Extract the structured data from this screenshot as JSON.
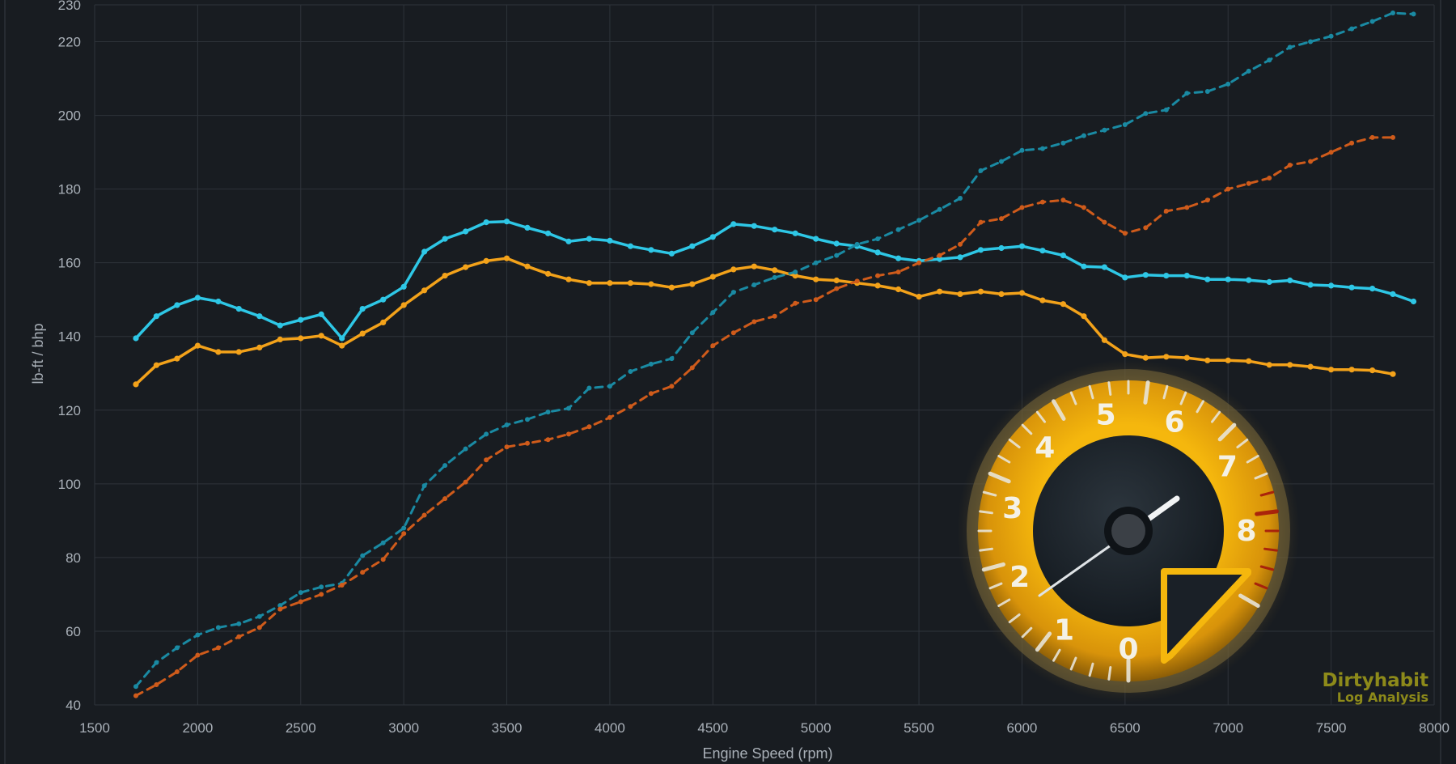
{
  "chart_data": {
    "type": "line",
    "title": "",
    "xlabel": "Engine Speed (rpm)",
    "ylabel": "lb-ft / bhp",
    "xlim": [
      1500,
      8000
    ],
    "ylim": [
      40,
      230
    ],
    "x_ticks": [
      1500,
      2000,
      2500,
      3000,
      3500,
      4000,
      4500,
      5000,
      5500,
      6000,
      6500,
      7000,
      7500,
      8000
    ],
    "y_ticks": [
      40,
      60,
      80,
      100,
      120,
      140,
      160,
      180,
      200,
      220,
      230
    ],
    "grid": true,
    "legend": "none",
    "series": [
      {
        "color": "#2ec7e6",
        "dash": "solid",
        "points": [
          [
            1700,
            139.5
          ],
          [
            1800,
            145.5
          ],
          [
            1900,
            148.5
          ],
          [
            2000,
            150.5
          ],
          [
            2100,
            149.5
          ],
          [
            2200,
            147.5
          ],
          [
            2300,
            145.5
          ],
          [
            2400,
            143
          ],
          [
            2500,
            144.5
          ],
          [
            2600,
            146
          ],
          [
            2700,
            139.5
          ],
          [
            2800,
            147.5
          ],
          [
            2900,
            150
          ],
          [
            3000,
            153.5
          ],
          [
            3100,
            163
          ],
          [
            3200,
            166.5
          ],
          [
            3300,
            168.5
          ],
          [
            3400,
            171
          ],
          [
            3500,
            171.2
          ],
          [
            3600,
            169.5
          ],
          [
            3700,
            168
          ],
          [
            3800,
            165.8
          ],
          [
            3900,
            166.5
          ],
          [
            4000,
            166
          ],
          [
            4100,
            164.5
          ],
          [
            4200,
            163.5
          ],
          [
            4300,
            162.5
          ],
          [
            4400,
            164.5
          ],
          [
            4500,
            167
          ],
          [
            4600,
            170.5
          ],
          [
            4700,
            170
          ],
          [
            4800,
            169
          ],
          [
            4900,
            168
          ],
          [
            5000,
            166.5
          ],
          [
            5100,
            165.2
          ],
          [
            5200,
            164.5
          ],
          [
            5300,
            162.8
          ],
          [
            5400,
            161.2
          ],
          [
            5500,
            160.5
          ],
          [
            5600,
            161
          ],
          [
            5700,
            161.5
          ],
          [
            5800,
            163.5
          ],
          [
            5900,
            164
          ],
          [
            6000,
            164.5
          ],
          [
            6100,
            163.3
          ],
          [
            6200,
            162
          ],
          [
            6300,
            159
          ],
          [
            6400,
            158.8
          ],
          [
            6500,
            156
          ],
          [
            6600,
            156.7
          ],
          [
            6700,
            156.5
          ],
          [
            6800,
            156.5
          ],
          [
            6900,
            155.5
          ],
          [
            7000,
            155.5
          ],
          [
            7100,
            155.3
          ],
          [
            7200,
            154.8
          ],
          [
            7300,
            155.2
          ],
          [
            7400,
            154
          ],
          [
            7500,
            153.8
          ],
          [
            7600,
            153.3
          ],
          [
            7700,
            153
          ],
          [
            7800,
            151.5
          ],
          [
            7900,
            149.5
          ]
        ]
      },
      {
        "color": "#f3a21a",
        "dash": "solid",
        "points": [
          [
            1700,
            127
          ],
          [
            1800,
            132.2
          ],
          [
            1900,
            134
          ],
          [
            2000,
            137.5
          ],
          [
            2100,
            135.8
          ],
          [
            2200,
            135.8
          ],
          [
            2300,
            137
          ],
          [
            2400,
            139.2
          ],
          [
            2500,
            139.5
          ],
          [
            2600,
            140.2
          ],
          [
            2700,
            137.5
          ],
          [
            2800,
            140.8
          ],
          [
            2900,
            143.8
          ],
          [
            3000,
            148.5
          ],
          [
            3100,
            152.5
          ],
          [
            3200,
            156.5
          ],
          [
            3300,
            158.8
          ],
          [
            3400,
            160.5
          ],
          [
            3500,
            161.2
          ],
          [
            3600,
            159
          ],
          [
            3700,
            157
          ],
          [
            3800,
            155.5
          ],
          [
            3900,
            154.5
          ],
          [
            4000,
            154.5
          ],
          [
            4100,
            154.5
          ],
          [
            4200,
            154.2
          ],
          [
            4300,
            153.3
          ],
          [
            4400,
            154.2
          ],
          [
            4500,
            156.2
          ],
          [
            4600,
            158.2
          ],
          [
            4700,
            159
          ],
          [
            4800,
            158
          ],
          [
            4900,
            156.5
          ],
          [
            5000,
            155.5
          ],
          [
            5100,
            155.2
          ],
          [
            5200,
            154.5
          ],
          [
            5300,
            153.8
          ],
          [
            5400,
            152.8
          ],
          [
            5500,
            150.8
          ],
          [
            5600,
            152.2
          ],
          [
            5700,
            151.5
          ],
          [
            5800,
            152.2
          ],
          [
            5900,
            151.5
          ],
          [
            6000,
            151.8
          ],
          [
            6100,
            149.8
          ],
          [
            6200,
            148.8
          ],
          [
            6300,
            145.5
          ],
          [
            6400,
            139
          ],
          [
            6500,
            135.2
          ],
          [
            6600,
            134.2
          ],
          [
            6700,
            134.5
          ],
          [
            6800,
            134.2
          ],
          [
            6900,
            133.5
          ],
          [
            7000,
            133.5
          ],
          [
            7100,
            133.3
          ],
          [
            7200,
            132.3
          ],
          [
            7300,
            132.3
          ],
          [
            7400,
            131.8
          ],
          [
            7500,
            131
          ],
          [
            7600,
            131
          ],
          [
            7700,
            130.8
          ],
          [
            7800,
            129.8
          ]
        ]
      },
      {
        "color": "#1a8aa3",
        "dash": "dashed",
        "points": [
          [
            1700,
            45
          ],
          [
            1800,
            51.5
          ],
          [
            1900,
            55.5
          ],
          [
            2000,
            59
          ],
          [
            2100,
            61
          ],
          [
            2200,
            62
          ],
          [
            2300,
            64
          ],
          [
            2400,
            67
          ],
          [
            2500,
            70.5
          ],
          [
            2600,
            72
          ],
          [
            2700,
            73
          ],
          [
            2800,
            80.5
          ],
          [
            2900,
            84
          ],
          [
            3000,
            88
          ],
          [
            3100,
            99.5
          ],
          [
            3200,
            105
          ],
          [
            3300,
            109.5
          ],
          [
            3400,
            113.5
          ],
          [
            3500,
            116
          ],
          [
            3600,
            117.5
          ],
          [
            3700,
            119.5
          ],
          [
            3800,
            120.5
          ],
          [
            3900,
            126
          ],
          [
            4000,
            126.5
          ],
          [
            4100,
            130.5
          ],
          [
            4200,
            132.5
          ],
          [
            4300,
            134
          ],
          [
            4400,
            141
          ],
          [
            4500,
            146.5
          ],
          [
            4600,
            152
          ],
          [
            4700,
            154
          ],
          [
            4800,
            156
          ],
          [
            4900,
            157.5
          ],
          [
            5000,
            160
          ],
          [
            5100,
            162
          ],
          [
            5200,
            165
          ],
          [
            5300,
            166.5
          ],
          [
            5400,
            169
          ],
          [
            5500,
            171.5
          ],
          [
            5600,
            174.5
          ],
          [
            5700,
            177.5
          ],
          [
            5800,
            185
          ],
          [
            5900,
            187.5
          ],
          [
            6000,
            190.5
          ],
          [
            6100,
            191
          ],
          [
            6200,
            192.5
          ],
          [
            6300,
            194.5
          ],
          [
            6400,
            196
          ],
          [
            6500,
            197.5
          ],
          [
            6600,
            200.5
          ],
          [
            6700,
            201.5
          ],
          [
            6800,
            206
          ],
          [
            6900,
            206.5
          ],
          [
            7000,
            208.5
          ],
          [
            7100,
            212
          ],
          [
            7200,
            215
          ],
          [
            7300,
            218.5
          ],
          [
            7400,
            220
          ],
          [
            7500,
            221.5
          ],
          [
            7600,
            223.5
          ],
          [
            7700,
            225.5
          ],
          [
            7800,
            227.8
          ],
          [
            7900,
            227.5
          ]
        ]
      },
      {
        "color": "#cf5b1b",
        "dash": "dashed",
        "points": [
          [
            1700,
            42.5
          ],
          [
            1800,
            45.5
          ],
          [
            1900,
            49
          ],
          [
            2000,
            53.5
          ],
          [
            2100,
            55.5
          ],
          [
            2200,
            58.5
          ],
          [
            2300,
            61
          ],
          [
            2400,
            66
          ],
          [
            2500,
            68
          ],
          [
            2600,
            70
          ],
          [
            2700,
            72.5
          ],
          [
            2800,
            76
          ],
          [
            2900,
            79.5
          ],
          [
            3000,
            86.5
          ],
          [
            3100,
            91.5
          ],
          [
            3200,
            96
          ],
          [
            3300,
            100.5
          ],
          [
            3400,
            106.5
          ],
          [
            3500,
            110
          ],
          [
            3600,
            111
          ],
          [
            3700,
            112
          ],
          [
            3800,
            113.5
          ],
          [
            3900,
            115.5
          ],
          [
            4000,
            118
          ],
          [
            4100,
            121
          ],
          [
            4200,
            124.5
          ],
          [
            4300,
            126.5
          ],
          [
            4400,
            131.5
          ],
          [
            4500,
            137.5
          ],
          [
            4600,
            141
          ],
          [
            4700,
            144
          ],
          [
            4800,
            145.5
          ],
          [
            4900,
            149
          ],
          [
            5000,
            150
          ],
          [
            5100,
            153
          ],
          [
            5200,
            155
          ],
          [
            5300,
            156.5
          ],
          [
            5400,
            157.5
          ],
          [
            5500,
            160
          ],
          [
            5600,
            162
          ],
          [
            5700,
            165
          ],
          [
            5800,
            171
          ],
          [
            5900,
            172
          ],
          [
            6000,
            175
          ],
          [
            6100,
            176.5
          ],
          [
            6200,
            177
          ],
          [
            6300,
            175
          ],
          [
            6400,
            171
          ],
          [
            6500,
            168
          ],
          [
            6600,
            169.5
          ],
          [
            6700,
            174
          ],
          [
            6800,
            175
          ],
          [
            6900,
            177
          ],
          [
            7000,
            180
          ],
          [
            7100,
            181.5
          ],
          [
            7200,
            183
          ],
          [
            7300,
            186.5
          ],
          [
            7400,
            187.5
          ],
          [
            7500,
            190
          ],
          [
            7600,
            192.5
          ],
          [
            7700,
            194
          ],
          [
            7800,
            194
          ]
        ]
      }
    ]
  },
  "gauge": {
    "numbers": [
      "0",
      "1",
      "2",
      "3",
      "4",
      "5",
      "6",
      "7",
      "8"
    ]
  },
  "watermark": {
    "title": "Dirtyhabit",
    "subtitle": "Log Analysis"
  }
}
